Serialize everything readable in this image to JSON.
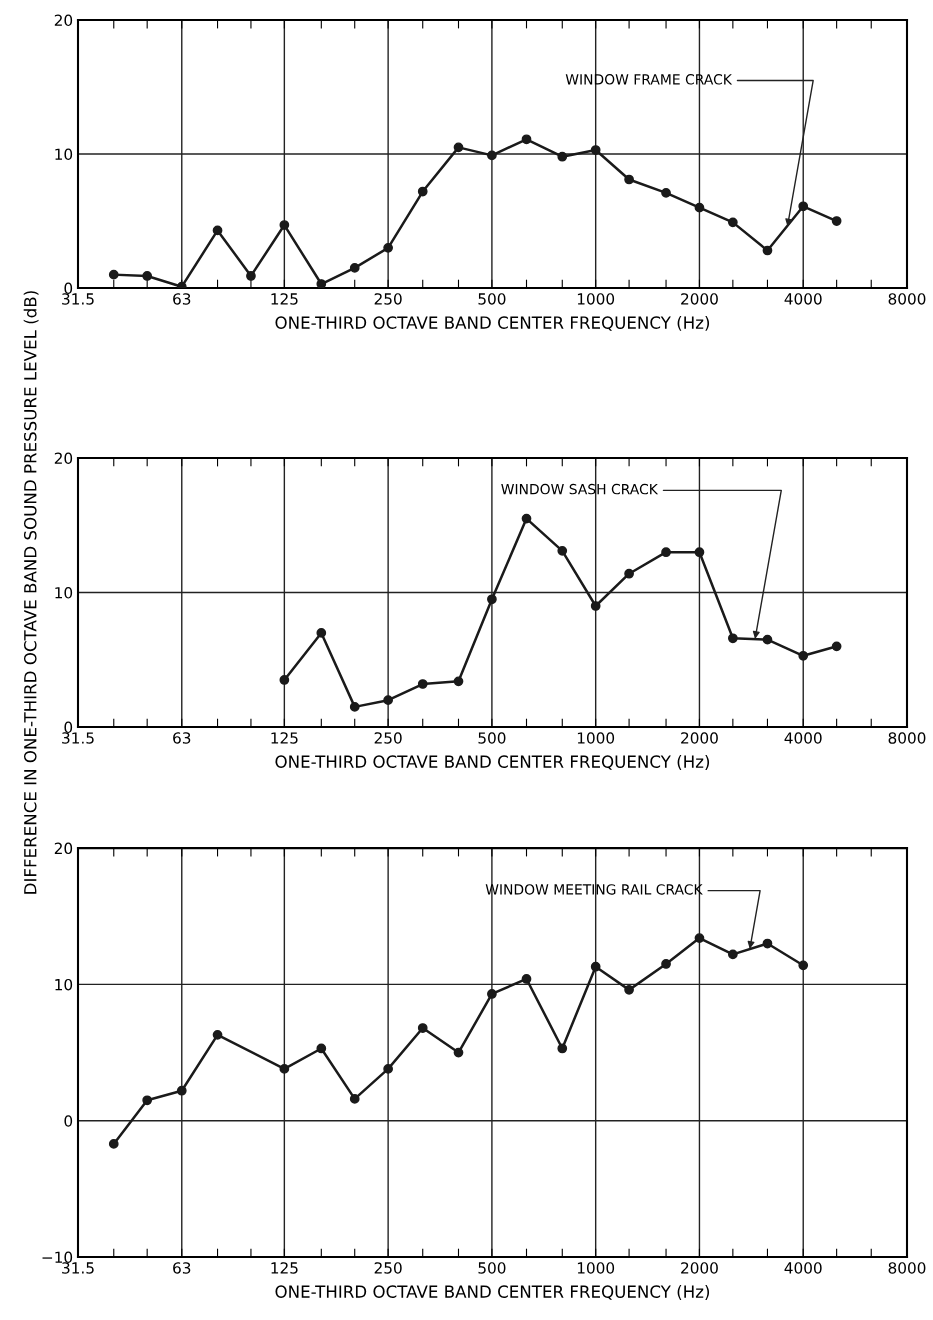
{
  "chart_data": [
    {
      "type": "line",
      "xlabel": "ONE-THIRD OCTAVE BAND CENTER FREQUENCY (Hz)",
      "log": "x",
      "grid": true,
      "marker": "circle",
      "line_style": "solid",
      "xlim": [
        31.5,
        8000
      ],
      "ylim": [
        0,
        20
      ],
      "yticks": [
        0,
        10,
        20
      ],
      "xticks": [
        31.5,
        {
          "value": 40,
          "label": null
        },
        {
          "value": 50,
          "label": null
        },
        63,
        {
          "value": 80,
          "label": null
        },
        {
          "value": 100,
          "label": null
        },
        125,
        {
          "value": 160,
          "label": null
        },
        {
          "value": 200,
          "label": null
        },
        250,
        {
          "value": 315,
          "label": null
        },
        {
          "value": 400,
          "label": null
        },
        500,
        {
          "value": 630,
          "label": null
        },
        {
          "value": 800,
          "label": null
        },
        1000,
        {
          "value": 1250,
          "label": null
        },
        {
          "value": 1600,
          "label": null
        },
        2000,
        {
          "value": 2500,
          "label": null
        },
        {
          "value": 3150,
          "label": null
        },
        4000,
        {
          "value": 5000,
          "label": null
        },
        {
          "value": 6300,
          "label": null
        },
        8000
      ],
      "x": [
        40,
        50,
        63,
        80,
        100,
        125,
        160,
        200,
        250,
        315,
        400,
        500,
        630,
        800,
        1000,
        1250,
        1600,
        2000,
        2500,
        3150,
        4000,
        5000
      ],
      "series": [
        {
          "color": "#1a1a1a",
          "values": [
            1.0,
            0.9,
            0.1,
            4.3,
            0.9,
            4.7,
            0.3,
            1.5,
            3.0,
            7.2,
            10.5,
            9.9,
            11.1,
            9.8,
            10.3,
            8.1,
            7.1,
            6.0,
            4.9,
            2.8,
            6.1,
            5.0
          ]
        }
      ],
      "annotations": [
        {
          "text": "WINDOW FRAME CRACK",
          "x": 3600,
          "y": 4.6
        }
      ]
    },
    {
      "type": "line",
      "xlabel": "ONE-THIRD OCTAVE BAND CENTER FREQUENCY (Hz)",
      "ylabel": "DIFFERENCE IN ONE-THIRD OCTAVE BAND SOUND PRESSURE LEVEL (dB)",
      "log": "x",
      "grid": true,
      "marker": "circle",
      "line_style": "solid",
      "xlim": [
        31.5,
        8000
      ],
      "ylim": [
        0,
        20
      ],
      "yticks": [
        0,
        10,
        20
      ],
      "xticks": [
        31.5,
        {
          "value": 40,
          "label": null
        },
        {
          "value": 50,
          "label": null
        },
        63,
        {
          "value": 80,
          "label": null
        },
        {
          "value": 100,
          "label": null
        },
        125,
        {
          "value": 160,
          "label": null
        },
        {
          "value": 200,
          "label": null
        },
        250,
        {
          "value": 315,
          "label": null
        },
        {
          "value": 400,
          "label": null
        },
        500,
        {
          "value": 630,
          "label": null
        },
        {
          "value": 800,
          "label": null
        },
        1000,
        {
          "value": 1250,
          "label": null
        },
        {
          "value": 1600,
          "label": null
        },
        2000,
        {
          "value": 2500,
          "label": null
        },
        {
          "value": 3150,
          "label": null
        },
        4000,
        {
          "value": 5000,
          "label": null
        },
        {
          "value": 6300,
          "label": null
        },
        8000
      ],
      "x": [
        125,
        160,
        200,
        250,
        315,
        400,
        500,
        630,
        800,
        1000,
        1250,
        1600,
        2000,
        2500,
        3150,
        4000,
        5000
      ],
      "series": [
        {
          "color": "#1a1a1a",
          "values": [
            3.5,
            7.0,
            1.5,
            2.0,
            3.2,
            3.4,
            9.5,
            15.5,
            13.1,
            9.0,
            11.4,
            13.0,
            13.0,
            6.6,
            6.5,
            5.3,
            6.0
          ]
        }
      ],
      "annotations": [
        {
          "text": "WINDOW SASH CRACK",
          "x": 2900,
          "y": 6.55
        }
      ]
    },
    {
      "type": "line",
      "xlabel": "ONE-THIRD OCTAVE BAND CENTER FREQUENCY (Hz)",
      "log": "x",
      "grid": true,
      "marker": "circle",
      "line_style": "solid",
      "xlim": [
        31.5,
        8000
      ],
      "ylim": [
        -10,
        20
      ],
      "yticks": [
        {
          "value": -10,
          "label": "−10"
        },
        0,
        10,
        20
      ],
      "xticks": [
        31.5,
        {
          "value": 40,
          "label": null
        },
        {
          "value": 50,
          "label": null
        },
        63,
        {
          "value": 80,
          "label": null
        },
        {
          "value": 100,
          "label": null
        },
        125,
        {
          "value": 160,
          "label": null
        },
        {
          "value": 200,
          "label": null
        },
        250,
        {
          "value": 315,
          "label": null
        },
        {
          "value": 400,
          "label": null
        },
        500,
        {
          "value": 630,
          "label": null
        },
        {
          "value": 800,
          "label": null
        },
        1000,
        {
          "value": 1250,
          "label": null
        },
        {
          "value": 1600,
          "label": null
        },
        2000,
        {
          "value": 2500,
          "label": null
        },
        {
          "value": 3150,
          "label": null
        },
        4000,
        {
          "value": 5000,
          "label": null
        },
        {
          "value": 6300,
          "label": null
        },
        8000
      ],
      "x": [
        40,
        50,
        63,
        80,
        125,
        160,
        200,
        250,
        315,
        400,
        500,
        630,
        800,
        1000,
        1250,
        1600,
        2000,
        2500,
        3150,
        4000
      ],
      "series": [
        {
          "color": "#1a1a1a",
          "values": [
            -1.7,
            1.5,
            2.2,
            6.3,
            3.8,
            5.3,
            1.6,
            3.8,
            6.8,
            5.0,
            9.3,
            10.4,
            5.3,
            11.3,
            9.6,
            11.5,
            13.4,
            12.2,
            13.0,
            11.4
          ]
        }
      ],
      "annotations": [
        {
          "text": "WINDOW MEETING RAIL CRACK",
          "x": 2800,
          "y": 12.6
        }
      ]
    }
  ]
}
